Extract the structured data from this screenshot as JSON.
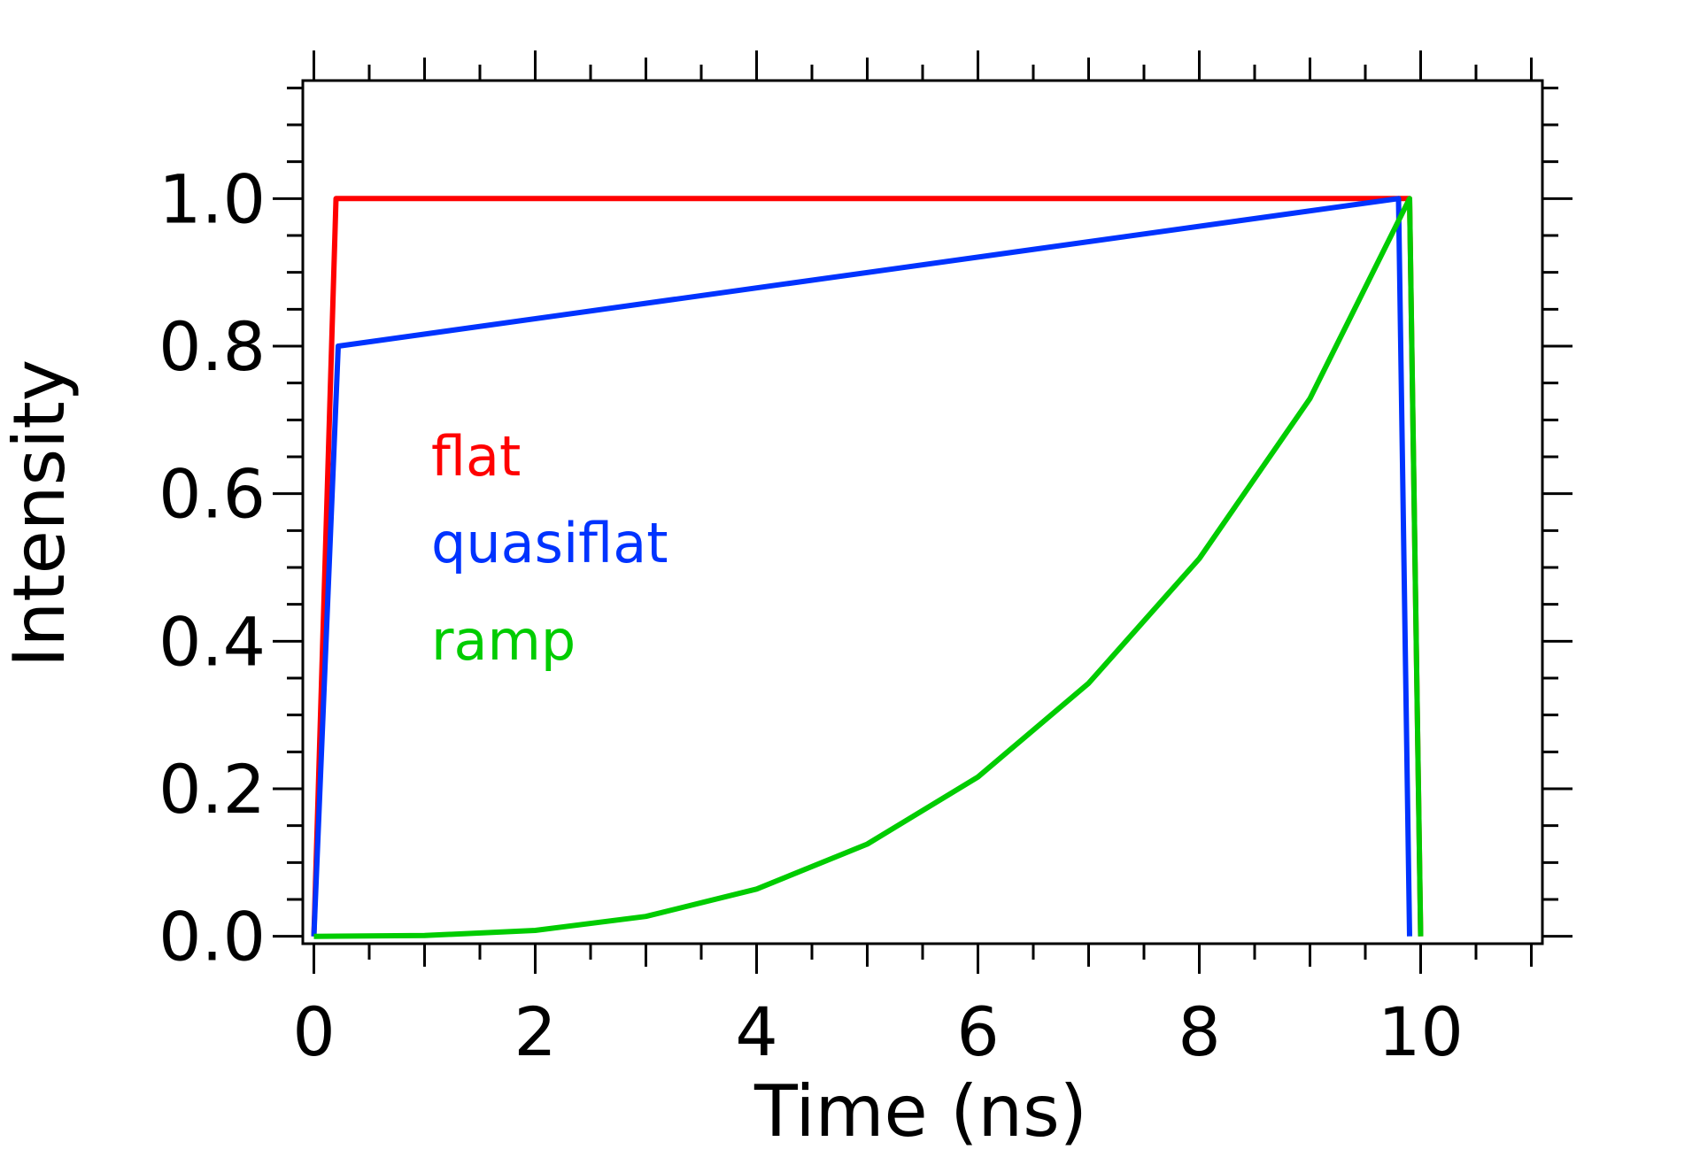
{
  "chart_data": {
    "type": "line",
    "xlabel": "Time (ns)",
    "ylabel": "Intensity",
    "xlim": [
      -0.1,
      11.1
    ],
    "ylim": [
      -0.01,
      1.16
    ],
    "xticks": [
      "0",
      "2",
      "4",
      "6",
      "8",
      "10"
    ],
    "yticks": [
      "0.0",
      "0.2",
      "0.4",
      "0.6",
      "0.8",
      "1.0"
    ],
    "grid": false,
    "legend_position": "upper-left inside plot",
    "series": [
      {
        "name": "flat",
        "color": "#ff0000",
        "x": [
          0,
          0.2,
          9.8,
          9.9,
          10
        ],
        "y": [
          0,
          1.0,
          1.0,
          1.0,
          0
        ]
      },
      {
        "name": "quasiflat",
        "color": "#0033ff",
        "x": [
          0,
          0.22,
          9.8,
          9.9
        ],
        "y": [
          0,
          0.8,
          1.0,
          0
        ]
      },
      {
        "name": "ramp",
        "color": "#00cc00",
        "x": [
          0,
          1,
          2,
          3,
          4,
          5,
          6,
          7,
          8,
          9,
          9.9,
          10
        ],
        "y": [
          0,
          0.001,
          0.008,
          0.027,
          0.064,
          0.125,
          0.216,
          0.343,
          0.512,
          0.729,
          1.0,
          0
        ]
      }
    ]
  }
}
